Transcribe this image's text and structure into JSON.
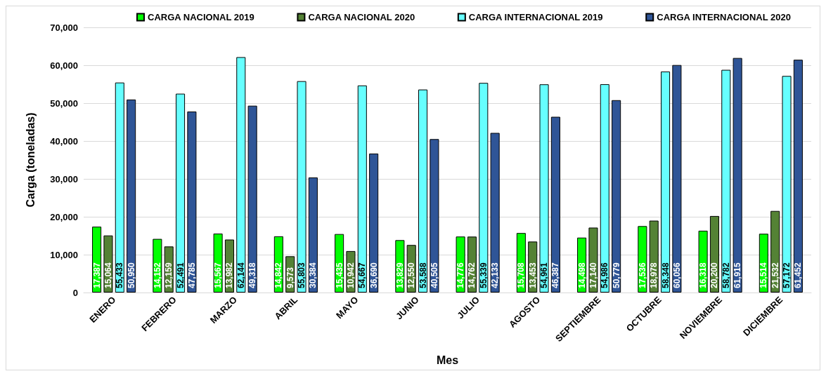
{
  "chart_data": {
    "type": "bar",
    "xlabel": "Mes",
    "ylabel": "Carga (toneladas)",
    "categories": [
      "ENERO",
      "FEBRERO",
      "MARZO",
      "ABRIL",
      "MAYO",
      "JUNIO",
      "JULIO",
      "AGOSTO",
      "SEPTIEMBRE",
      "OCTUBRE",
      "NOVIEMBRE",
      "DICIEMBRE"
    ],
    "series": [
      {
        "name": "CARGA NACIONAL 2019",
        "color": "#00ff00",
        "values": [
          17387,
          14152,
          15567,
          14842,
          15435,
          13829,
          14776,
          15708,
          14498,
          17536,
          16318,
          15514
        ],
        "value_labels": [
          "17,387",
          "14,152",
          "15,567",
          "14,842",
          "15,435",
          "13,829",
          "14,776",
          "15,708",
          "14,498",
          "17,536",
          "16,318",
          "15,514"
        ]
      },
      {
        "name": "CARGA NACIONAL 2020",
        "color": "#548235",
        "values": [
          15064,
          12159,
          13982,
          9573,
          10942,
          12550,
          14762,
          13453,
          17140,
          18978,
          20200,
          21532
        ],
        "value_labels": [
          "15,064",
          "12,159",
          "13,982",
          "9,573",
          "10,942",
          "12,550",
          "14,762",
          "13,453",
          "17,140",
          "18,978",
          "20,200",
          "21,532"
        ]
      },
      {
        "name": "CARGA INTERNACIONAL 2019",
        "color": "#66ffff",
        "values": [
          55433,
          52491,
          62144,
          55803,
          54667,
          53588,
          55339,
          54961,
          54986,
          58348,
          58782,
          57172
        ],
        "value_labels": [
          "55,433",
          "52,491",
          "62,144",
          "55,803",
          "54,667",
          "53,588",
          "55,339",
          "54,961",
          "54,986",
          "58,348",
          "58,782",
          "57,172"
        ]
      },
      {
        "name": "CARGA INTERNACIONAL 2020",
        "color": "#2f5597",
        "values": [
          50950,
          47785,
          49318,
          30384,
          36690,
          40505,
          42133,
          46387,
          50779,
          60056,
          61915,
          61452
        ],
        "value_labels": [
          "50,950",
          "47,785",
          "49,318",
          "30,384",
          "36,690",
          "40,505",
          "42,133",
          "46,387",
          "50,779",
          "60,056",
          "61,915",
          "61,452"
        ]
      }
    ],
    "ylim": [
      0,
      70000
    ],
    "yticks": [
      0,
      {
        "value": 10000,
        "label": "10,000"
      },
      {
        "value": 20000,
        "label": "20,000"
      },
      {
        "value": 30000,
        "label": "30,000"
      },
      {
        "value": 40000,
        "label": "40,000"
      },
      {
        "value": 50000,
        "label": "50,000"
      },
      {
        "value": 60000,
        "label": "60,000"
      },
      {
        "value": 70000,
        "label": "70,000"
      }
    ],
    "grid": "y",
    "legend": "top"
  }
}
